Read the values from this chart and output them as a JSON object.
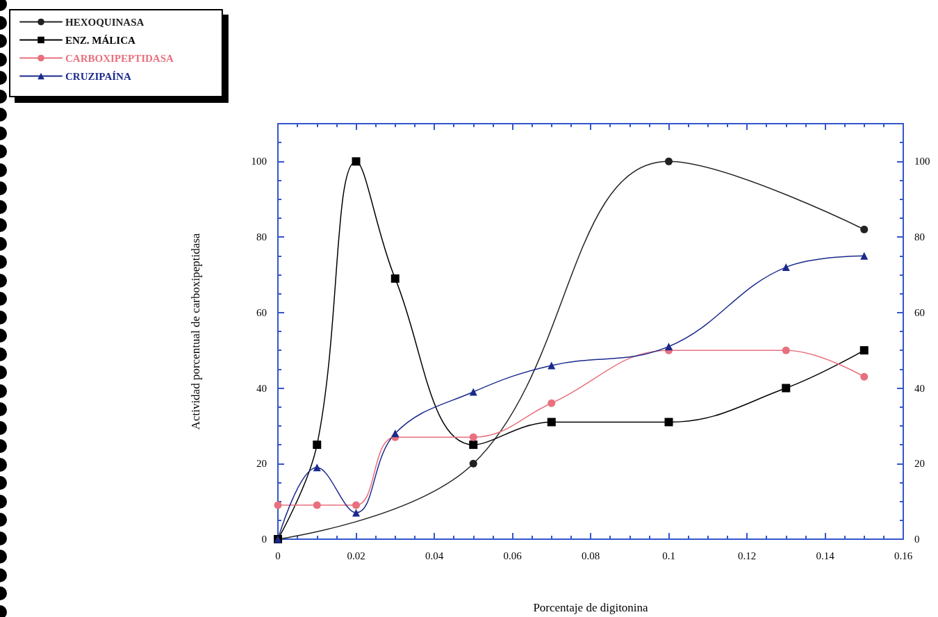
{
  "chart_data": {
    "type": "line",
    "xlabel": "Porcentaje de digitonina",
    "ylabel": "Actividad porcentual de carboxipeptidasa",
    "xlim": [
      0,
      0.16
    ],
    "xticks": [
      0,
      0.02,
      0.04,
      0.06,
      0.08,
      0.1,
      0.12,
      0.14,
      0.16
    ],
    "ylim": [
      0,
      110
    ],
    "yticks": [
      0,
      20,
      40,
      60,
      80,
      100
    ],
    "y2lim": [
      0,
      110
    ],
    "y2ticks": [
      0,
      20,
      40,
      60,
      80,
      100
    ],
    "grid": false,
    "legend": "top left",
    "line_style": "solid",
    "series": [
      {
        "name": "HEXOQUINASA",
        "color": "#222222",
        "marker": "circle",
        "x": [
          0,
          0.05,
          0.1,
          0.15
        ],
        "values": [
          0,
          20,
          100,
          82
        ]
      },
      {
        "name": "ENZ. MÁLICA",
        "color": "#000000",
        "marker": "square",
        "x": [
          0,
          0.01,
          0.02,
          0.03,
          0.05,
          0.07,
          0.1,
          0.13,
          0.15
        ],
        "values": [
          0,
          25,
          100,
          69,
          25,
          31,
          31,
          40,
          50
        ]
      },
      {
        "name": "CARBOXIPEPTIDASA",
        "color": "#e8707e",
        "marker": "circle",
        "x": [
          0,
          0.01,
          0.02,
          0.03,
          0.05,
          0.07,
          0.1,
          0.13,
          0.15
        ],
        "values": [
          9,
          9,
          9,
          27,
          27,
          36,
          50,
          50,
          43
        ]
      },
      {
        "name": "CRUZIPAÍNA",
        "color": "#1a2a8c",
        "marker": "triangle",
        "x": [
          0,
          0.01,
          0.02,
          0.03,
          0.05,
          0.07,
          0.1,
          0.13,
          0.15
        ],
        "values": [
          0,
          19,
          7,
          28,
          39,
          46,
          51,
          72,
          75
        ]
      }
    ]
  }
}
